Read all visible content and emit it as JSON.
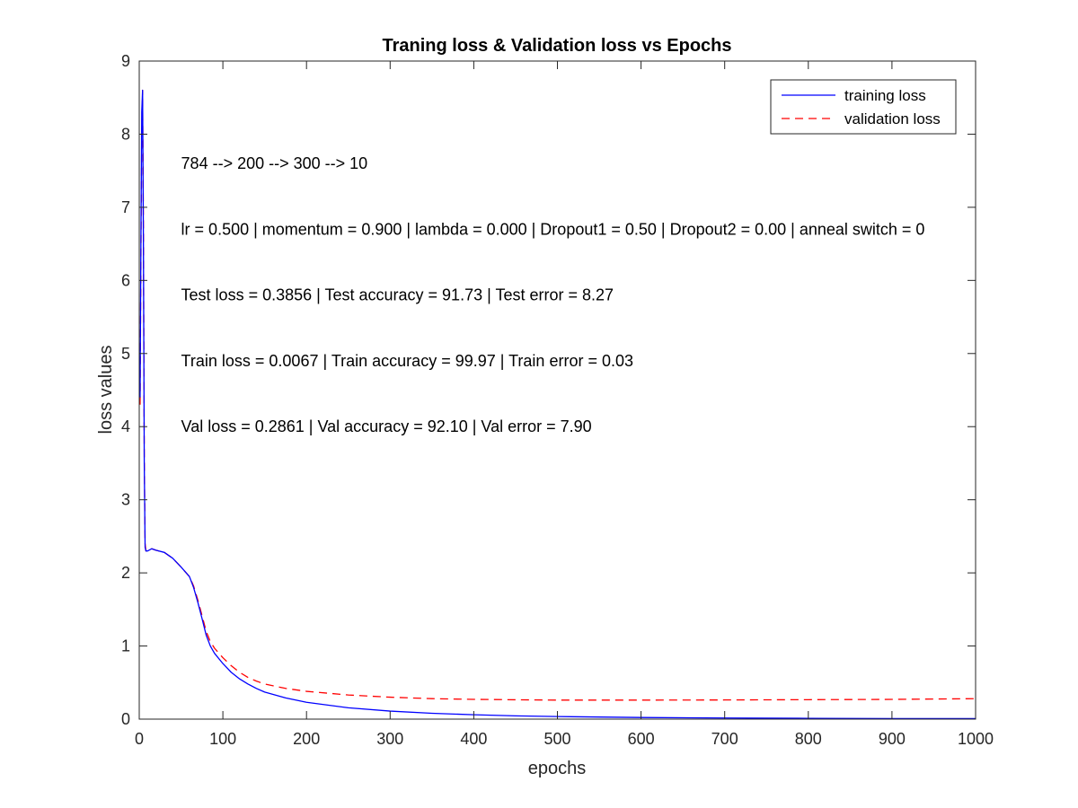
{
  "chart_data": {
    "type": "line",
    "title": "Traning loss & Validation loss vs Epochs",
    "xlabel": "epochs",
    "ylabel": "loss values",
    "xlim": [
      0,
      1000
    ],
    "ylim": [
      0,
      9
    ],
    "xticks": [
      0,
      100,
      200,
      300,
      400,
      500,
      600,
      700,
      800,
      900,
      1000
    ],
    "yticks": [
      0,
      1,
      2,
      3,
      4,
      5,
      6,
      7,
      8,
      9
    ],
    "grid": false,
    "legend_position": "top-right",
    "series": [
      {
        "name": "training loss",
        "color": "#0000ff",
        "style": "solid",
        "x": [
          1,
          2,
          3,
          4,
          5,
          6,
          7,
          8,
          10,
          15,
          20,
          30,
          40,
          50,
          60,
          65,
          70,
          75,
          80,
          85,
          90,
          100,
          110,
          120,
          130,
          140,
          150,
          175,
          200,
          250,
          300,
          350,
          400,
          450,
          500,
          600,
          700,
          800,
          900,
          1000
        ],
        "y": [
          4.4,
          6.5,
          8.3,
          8.6,
          6.5,
          3.5,
          2.35,
          2.3,
          2.3,
          2.33,
          2.31,
          2.28,
          2.2,
          2.08,
          1.95,
          1.8,
          1.6,
          1.38,
          1.15,
          1.0,
          0.9,
          0.76,
          0.64,
          0.55,
          0.48,
          0.42,
          0.37,
          0.29,
          0.23,
          0.155,
          0.11,
          0.08,
          0.06,
          0.045,
          0.035,
          0.022,
          0.015,
          0.011,
          0.008,
          0.007
        ]
      },
      {
        "name": "validation loss",
        "color": "#ff0000",
        "style": "dashed",
        "x": [
          1,
          2,
          3,
          4,
          5,
          6,
          7,
          8,
          10,
          15,
          20,
          30,
          40,
          50,
          60,
          65,
          70,
          75,
          80,
          85,
          90,
          100,
          110,
          120,
          130,
          140,
          150,
          175,
          200,
          250,
          300,
          350,
          400,
          450,
          500,
          600,
          700,
          800,
          900,
          1000
        ],
        "y": [
          4.3,
          6.3,
          8.0,
          8.6,
          6.7,
          3.6,
          2.4,
          2.3,
          2.3,
          2.33,
          2.31,
          2.28,
          2.2,
          2.08,
          1.95,
          1.82,
          1.63,
          1.42,
          1.2,
          1.06,
          0.97,
          0.84,
          0.73,
          0.64,
          0.57,
          0.52,
          0.48,
          0.42,
          0.38,
          0.33,
          0.3,
          0.28,
          0.27,
          0.265,
          0.26,
          0.26,
          0.262,
          0.266,
          0.27,
          0.28
        ]
      }
    ],
    "annotations": [
      {
        "text": "784 --> 200 --> 300 --> 10",
        "x": 50,
        "y": 7.6
      },
      {
        "text": "lr = 0.500 | momentum = 0.900 | lambda = 0.000 | Dropout1 = 0.50 | Dropout2 = 0.00 | anneal switch = 0",
        "x": 50,
        "y": 6.7
      },
      {
        "text": "Test loss = 0.3856 | Test accuracy = 91.73 | Test error = 8.27",
        "x": 50,
        "y": 5.8
      },
      {
        "text": "Train loss = 0.0067 | Train accuracy = 99.97 | Train error = 0.03",
        "x": 50,
        "y": 4.9
      },
      {
        "text": "Val loss = 0.2861 | Val accuracy = 92.10 | Val error = 7.90",
        "x": 50,
        "y": 4.0
      }
    ]
  }
}
